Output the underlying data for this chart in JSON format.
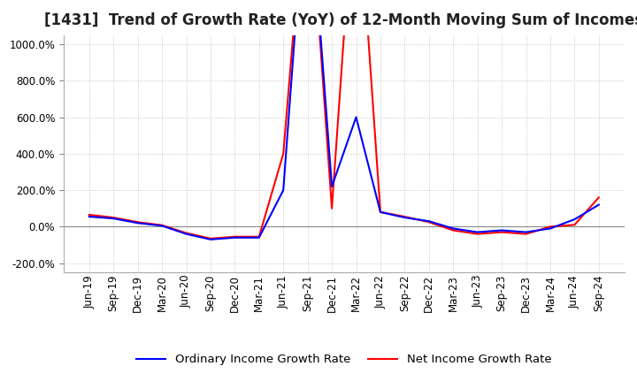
{
  "title": "[1431]  Trend of Growth Rate (YoY) of 12-Month Moving Sum of Incomes",
  "background_color": "#ffffff",
  "grid_color": "#bbbbbb",
  "ordinary_color": "#0000ff",
  "net_color": "#ff0000",
  "legend_labels": [
    "Ordinary Income Growth Rate",
    "Net Income Growth Rate"
  ],
  "x_labels": [
    "Jun-19",
    "Sep-19",
    "Dec-19",
    "Mar-20",
    "Jun-20",
    "Sep-20",
    "Dec-20",
    "Mar-21",
    "Jun-21",
    "Sep-21",
    "Dec-21",
    "Mar-22",
    "Jun-22",
    "Sep-22",
    "Dec-22",
    "Mar-23",
    "Jun-23",
    "Sep-23",
    "Dec-23",
    "Mar-24",
    "Jun-24",
    "Sep-24"
  ],
  "ordinary_income": [
    55,
    45,
    20,
    5,
    -40,
    -70,
    -60,
    -60,
    200,
    2000,
    220,
    600,
    80,
    50,
    30,
    -10,
    -30,
    -20,
    -30,
    -10,
    40,
    120
  ],
  "net_income": [
    65,
    50,
    25,
    8,
    -35,
    -65,
    -55,
    -55,
    400,
    2000,
    100,
    2000,
    80,
    55,
    25,
    -20,
    -40,
    -30,
    -40,
    0,
    10,
    160
  ],
  "ylim": [
    -250,
    1050
  ],
  "yticks": [
    -200,
    0,
    200,
    400,
    600,
    800,
    1000
  ],
  "title_fontsize": 12,
  "tick_fontsize": 8.5,
  "legend_fontsize": 9.5
}
